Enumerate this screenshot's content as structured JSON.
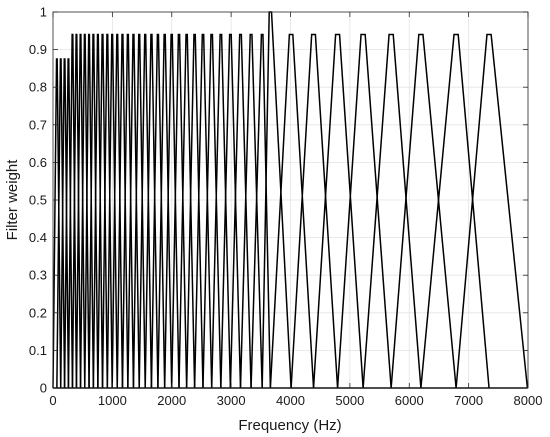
{
  "chart_data": {
    "type": "line",
    "title": "",
    "xlabel": "Frequency (Hz)",
    "ylabel": "Filter weight",
    "xlim": [
      0,
      8000
    ],
    "ylim": [
      0,
      1
    ],
    "xticks": [
      0,
      1000,
      2000,
      3000,
      4000,
      5000,
      6000,
      7000,
      8000
    ],
    "yticks": [
      0,
      0.1,
      0.2,
      0.3,
      0.4,
      0.5,
      0.6,
      0.7,
      0.8,
      0.9,
      1
    ],
    "grid": true,
    "legend": "none",
    "line_color": "#000000",
    "filter_peaks_hz": [
      65,
      130,
      195,
      260,
      328,
      395,
      464,
      535,
      607,
      680,
      756,
      834,
      915,
      997,
      1082,
      1170,
      1261,
      1355,
      1452,
      1553,
      1658,
      1767,
      1881,
      1999,
      2122,
      2251,
      2385,
      2526,
      2673,
      2827,
      2988,
      3158,
      3336,
      3523,
      3661,
      4010,
      4388,
      4793,
      5223,
      5695,
      6196,
      6789,
      7344
    ],
    "peak_heights": [
      0.875,
      0.875,
      0.875,
      0.875,
      0.94,
      0.94,
      0.94,
      0.94,
      0.94,
      0.94,
      0.94,
      0.94,
      0.94,
      0.94,
      0.94,
      0.94,
      0.94,
      0.94,
      0.94,
      0.94,
      0.94,
      0.94,
      0.94,
      0.94,
      0.94,
      0.94,
      0.94,
      0.94,
      0.94,
      0.94,
      0.94,
      0.94,
      0.94,
      0.94,
      1.0,
      0.94,
      0.94,
      0.94,
      0.94,
      0.94,
      0.94,
      0.94,
      0.94
    ],
    "filter_end_hz": 7990
  }
}
